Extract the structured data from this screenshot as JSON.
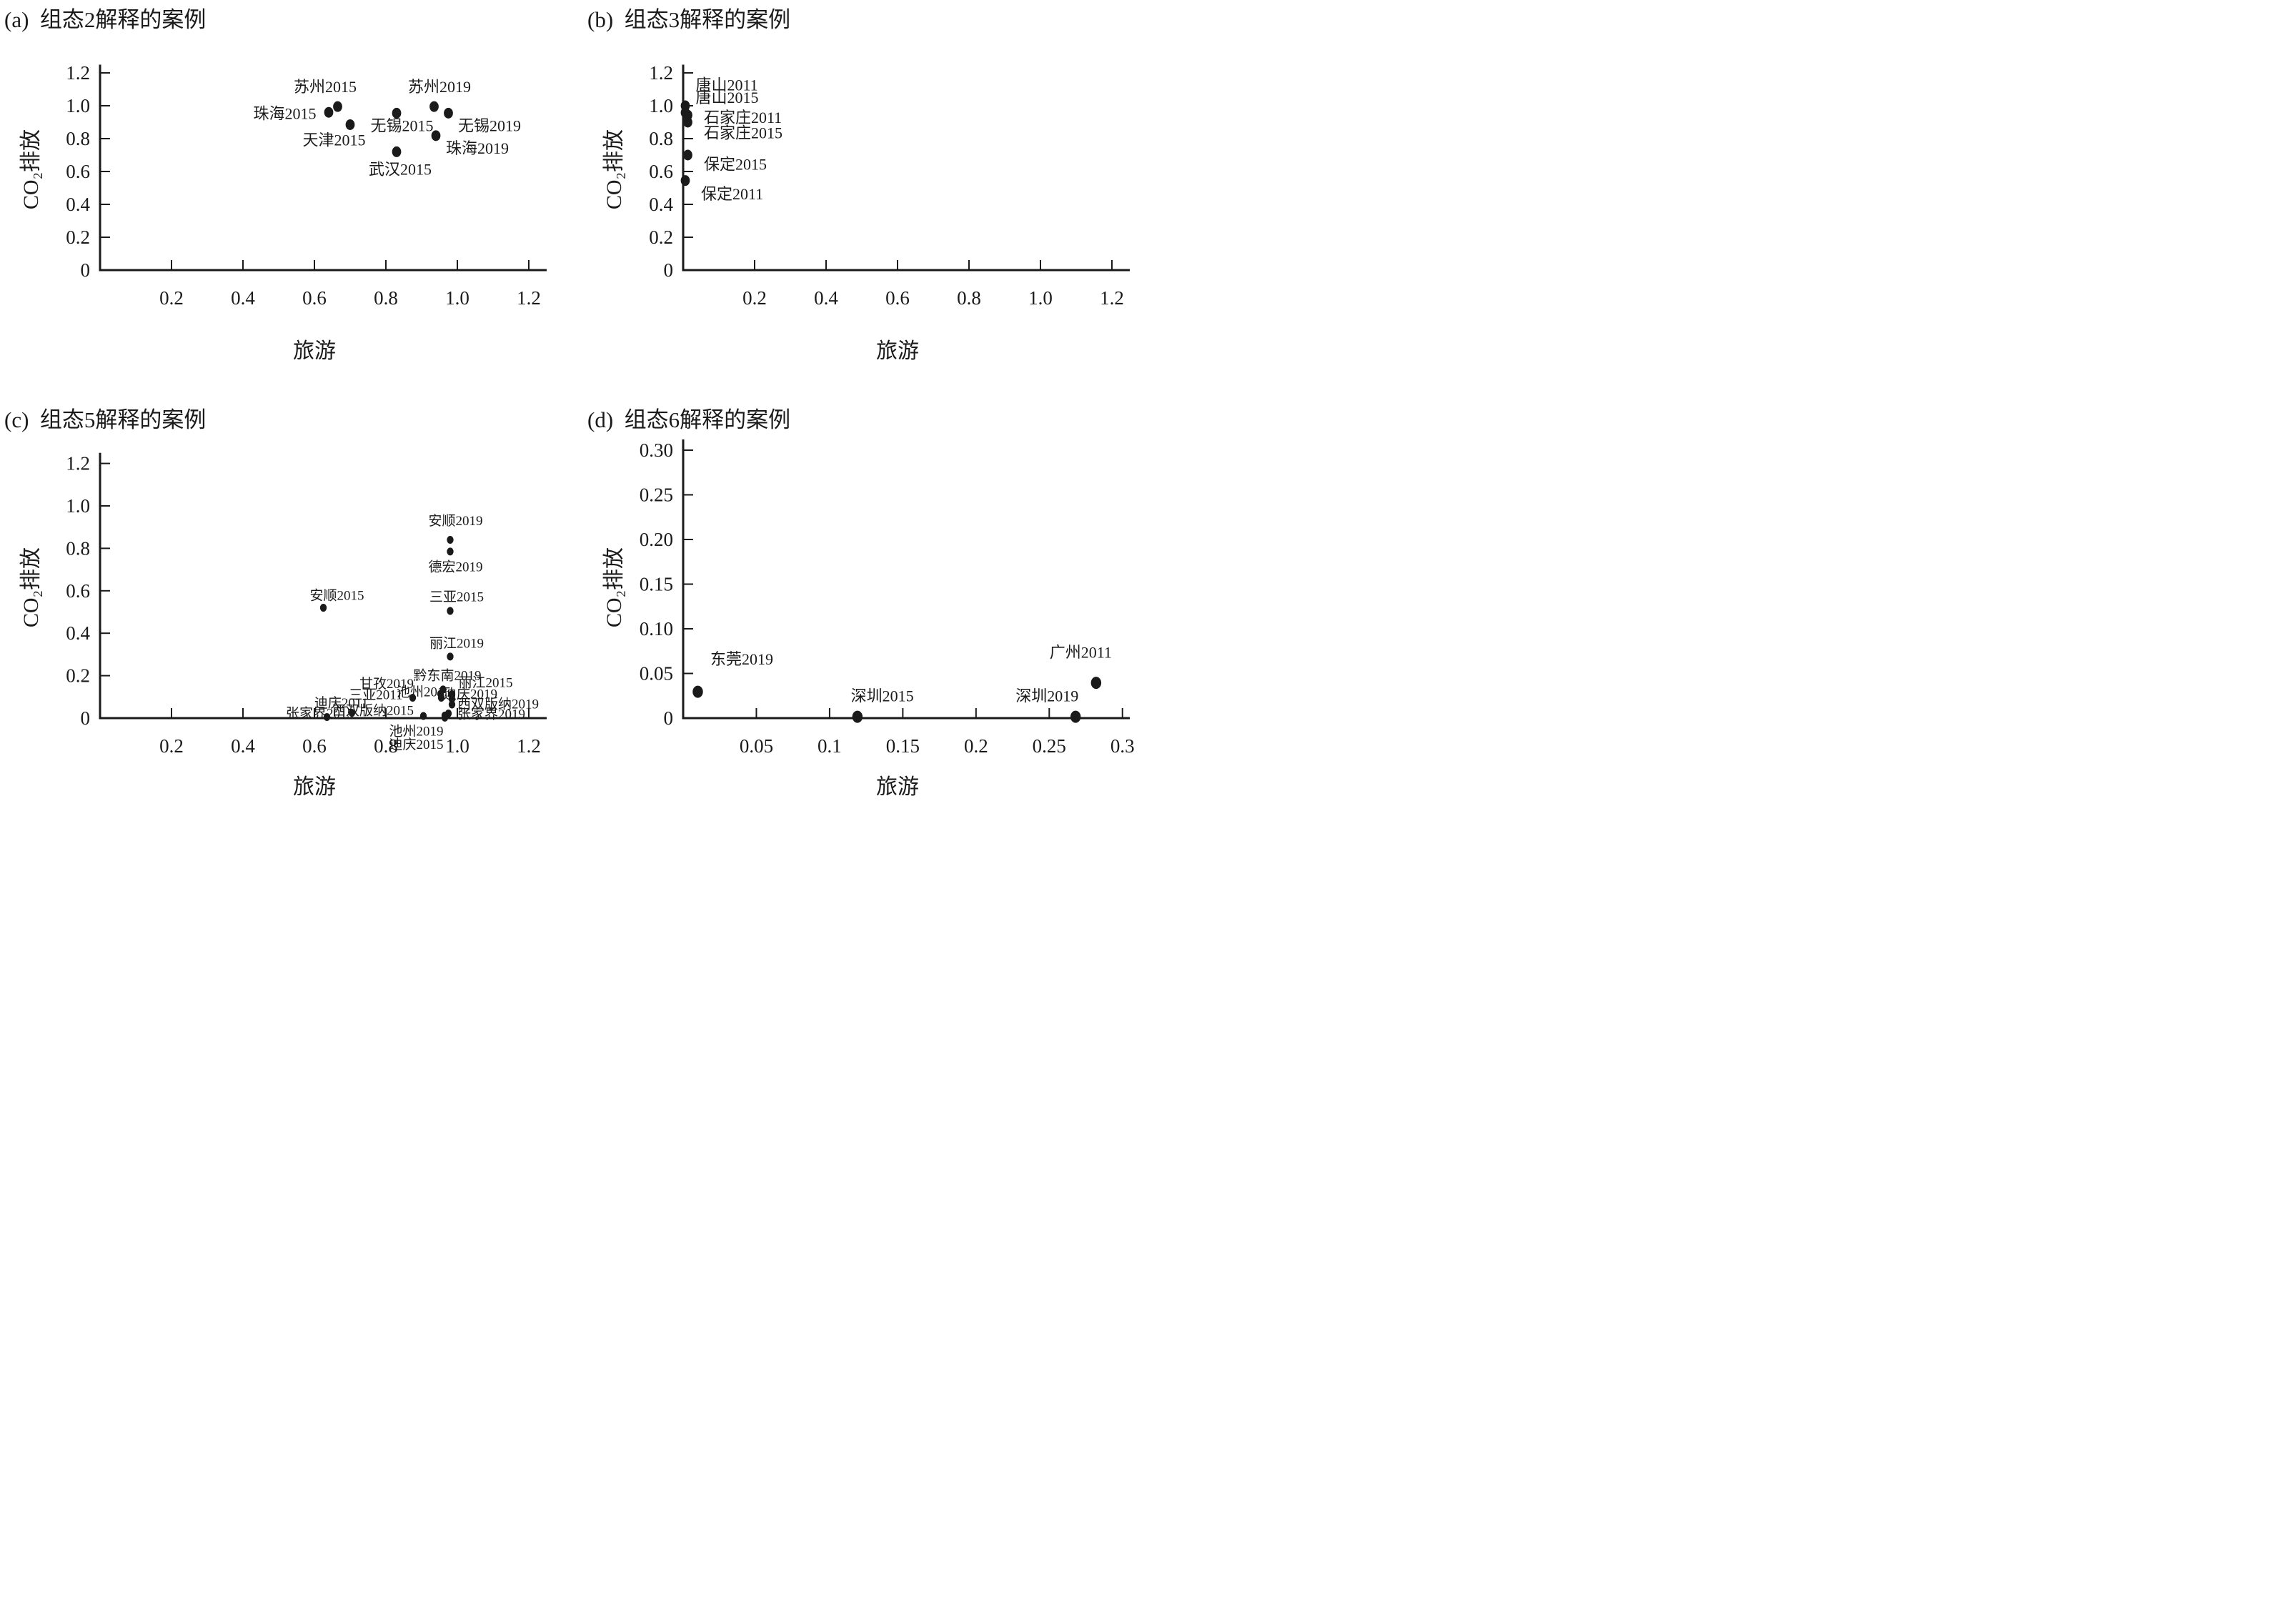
{
  "colors": {
    "ink": "#1a1a1a",
    "background": "#ffffff"
  },
  "chart_data": [
    {
      "type": "scatter",
      "id": "a",
      "title": "(a) 组态2解释的案例",
      "xlabel": "旅游",
      "ylabel": "CO₂排放",
      "xlim": [
        0,
        1.25
      ],
      "ylim": [
        0,
        1.25
      ],
      "xticks": [
        {
          "v": 0.2,
          "label": "0.2"
        },
        {
          "v": 0.4,
          "label": "0.4"
        },
        {
          "v": 0.6,
          "label": "0.6"
        },
        {
          "v": 0.8,
          "label": "0.8"
        },
        {
          "v": 1.0,
          "label": "1.0"
        },
        {
          "v": 1.2,
          "label": "1.2"
        }
      ],
      "yticks": [
        {
          "v": 0,
          "label": "0"
        },
        {
          "v": 0.2,
          "label": "0.2"
        },
        {
          "v": 0.4,
          "label": "0.4"
        },
        {
          "v": 0.6,
          "label": "0.6"
        },
        {
          "v": 0.8,
          "label": "0.8"
        },
        {
          "v": 1.0,
          "label": "1.0"
        },
        {
          "v": 1.2,
          "label": "1.2"
        }
      ],
      "points": [
        {
          "name": "珠海2015",
          "x": 0.64,
          "y": 0.96,
          "lx": 0.605,
          "ly": 0.952,
          "anchor": "end"
        },
        {
          "name": "苏州2015",
          "x": 0.665,
          "y": 0.995,
          "lx": 0.63,
          "ly": 1.115,
          "anchor": "middle"
        },
        {
          "name": "天津2015",
          "x": 0.7,
          "y": 0.885,
          "lx": 0.655,
          "ly": 0.79,
          "anchor": "middle"
        },
        {
          "name": "无锡2015",
          "x": 0.83,
          "y": 0.955,
          "lx": 0.845,
          "ly": 0.878,
          "anchor": "middle"
        },
        {
          "name": "苏州2019",
          "x": 0.935,
          "y": 0.995,
          "lx": 0.95,
          "ly": 1.115,
          "anchor": "middle"
        },
        {
          "name": "无锡2019",
          "x": 0.975,
          "y": 0.955,
          "lx": 1.09,
          "ly": 0.878,
          "anchor": "middle"
        },
        {
          "name": "珠海2019",
          "x": 0.94,
          "y": 0.818,
          "lx": 0.968,
          "ly": 0.74,
          "anchor": "start"
        },
        {
          "name": "武汉2015",
          "x": 0.83,
          "y": 0.72,
          "lx": 0.84,
          "ly": 0.612,
          "anchor": "middle"
        }
      ]
    },
    {
      "type": "scatter",
      "id": "b",
      "title": "(b) 组态3解释的案例",
      "xlabel": "旅游",
      "ylabel": "CO₂排放",
      "xlim": [
        0,
        1.25
      ],
      "ylim": [
        0,
        1.25
      ],
      "xticks": [
        {
          "v": 0.2,
          "label": "0.2"
        },
        {
          "v": 0.4,
          "label": "0.4"
        },
        {
          "v": 0.6,
          "label": "0.6"
        },
        {
          "v": 0.8,
          "label": "0.8"
        },
        {
          "v": 1.0,
          "label": "1.0"
        },
        {
          "v": 1.2,
          "label": "1.2"
        }
      ],
      "yticks": [
        {
          "v": 0,
          "label": "0"
        },
        {
          "v": 0.2,
          "label": "0.2"
        },
        {
          "v": 0.4,
          "label": "0.4"
        },
        {
          "v": 0.6,
          "label": "0.6"
        },
        {
          "v": 0.8,
          "label": "0.8"
        },
        {
          "v": 1.0,
          "label": "1.0"
        },
        {
          "v": 1.2,
          "label": "1.2"
        }
      ],
      "points": [
        {
          "name": "唐山2011",
          "x": 0.006,
          "y": 1.0,
          "lx": 0.035,
          "ly": 1.125,
          "anchor": "start"
        },
        {
          "name": "唐山2015",
          "x": 0.006,
          "y": 0.958,
          "lx": 0.035,
          "ly": 1.048,
          "anchor": "start"
        },
        {
          "name": "石家庄2011",
          "x": 0.013,
          "y": 0.943,
          "lx": 0.058,
          "ly": 0.928,
          "anchor": "start"
        },
        {
          "name": "石家庄2015",
          "x": 0.013,
          "y": 0.9,
          "lx": 0.058,
          "ly": 0.833,
          "anchor": "start"
        },
        {
          "name": "保定2015",
          "x": 0.013,
          "y": 0.7,
          "lx": 0.058,
          "ly": 0.643,
          "anchor": "start"
        },
        {
          "name": "保定2011",
          "x": 0.006,
          "y": 0.545,
          "lx": 0.05,
          "ly": 0.462,
          "anchor": "start"
        }
      ]
    },
    {
      "type": "scatter",
      "id": "c",
      "title": "(c) 组态5解释的案例",
      "xlabel": "旅游",
      "ylabel": "CO₂排放",
      "xlim": [
        0,
        1.25
      ],
      "ylim": [
        0,
        1.25
      ],
      "xticks": [
        {
          "v": 0.2,
          "label": "0.2"
        },
        {
          "v": 0.4,
          "label": "0.4"
        },
        {
          "v": 0.6,
          "label": "0.6"
        },
        {
          "v": 0.8,
          "label": "0.8"
        },
        {
          "v": 1.0,
          "label": "1.0"
        },
        {
          "v": 1.2,
          "label": "1.2"
        }
      ],
      "yticks": [
        {
          "v": 0,
          "label": "0"
        },
        {
          "v": 0.2,
          "label": "0.2"
        },
        {
          "v": 0.4,
          "label": "0.4"
        },
        {
          "v": 0.6,
          "label": "0.6"
        },
        {
          "v": 0.8,
          "label": "0.8"
        },
        {
          "v": 1.0,
          "label": "1.0"
        },
        {
          "v": 1.2,
          "label": "1.2"
        }
      ],
      "points": [
        {
          "name": "安顺2019",
          "x": 0.98,
          "y": 0.84,
          "lx": 0.995,
          "ly": 0.93,
          "anchor": "middle"
        },
        {
          "name": "德宏2019",
          "x": 0.98,
          "y": 0.785,
          "lx": 0.995,
          "ly": 0.713,
          "anchor": "middle"
        },
        {
          "name": "安顺2015",
          "x": 0.625,
          "y": 0.52,
          "lx": 0.663,
          "ly": 0.578,
          "anchor": "middle"
        },
        {
          "name": "三亚2015",
          "x": 0.98,
          "y": 0.505,
          "lx": 0.998,
          "ly": 0.572,
          "anchor": "middle"
        },
        {
          "name": "丽江2019",
          "x": 0.98,
          "y": 0.29,
          "lx": 0.998,
          "ly": 0.352,
          "anchor": "middle"
        },
        {
          "name": "黔东南2019",
          "x": 0.96,
          "y": 0.135,
          "lx": 0.972,
          "ly": 0.201,
          "anchor": "middle"
        },
        {
          "name": "甘孜2019",
          "x": 0.953,
          "y": 0.114,
          "lx": 0.878,
          "ly": 0.162,
          "anchor": "end"
        },
        {
          "name": "丽江2015",
          "x": 0.985,
          "y": 0.112,
          "lx": 1.003,
          "ly": 0.168,
          "anchor": "start"
        },
        {
          "name": "池州2015",
          "x": 0.955,
          "y": 0.096,
          "lx": 0.982,
          "ly": 0.124,
          "anchor": "end"
        },
        {
          "name": "迪庆2019",
          "x": 0.985,
          "y": 0.09,
          "lx": 0.96,
          "ly": 0.114,
          "anchor": "start"
        },
        {
          "name": "三亚2011",
          "x": 0.875,
          "y": 0.096,
          "lx": 0.847,
          "ly": 0.11,
          "anchor": "end"
        },
        {
          "name": "西双版纳2019",
          "x": 0.985,
          "y": 0.064,
          "lx": 1.0,
          "ly": 0.066,
          "anchor": "start"
        },
        {
          "name": "迪庆2011",
          "x": 0.705,
          "y": 0.025,
          "lx": 0.675,
          "ly": 0.072,
          "anchor": "middle"
        },
        {
          "name": "西双版纳2015",
          "x": 0.905,
          "y": 0.01,
          "lx": 0.878,
          "ly": 0.036,
          "anchor": "end"
        },
        {
          "name": "张家界2015",
          "x": 0.635,
          "y": 0.005,
          "lx": 0.71,
          "ly": 0.022,
          "anchor": "end"
        },
        {
          "name": "张家界2019",
          "x": 0.975,
          "y": 0.022,
          "lx": 1.0,
          "ly": 0.02,
          "anchor": "start"
        },
        {
          "name": "池州2019",
          "x": 0.965,
          "y": 0.012,
          "lx": 0.885,
          "ly": -0.062,
          "anchor": "middle"
        },
        {
          "name": "迪庆2015",
          "x": 0.965,
          "y": 0.002,
          "lx": 0.885,
          "ly": -0.124,
          "anchor": "middle"
        }
      ]
    },
    {
      "type": "scatter",
      "id": "d",
      "title": "(d) 组态6解释的案例",
      "xlabel": "旅游",
      "ylabel": "CO₂排放",
      "xlim": [
        0,
        0.305
      ],
      "ylim": [
        0,
        0.312
      ],
      "xticks": [
        {
          "v": 0.05,
          "label": "0.05"
        },
        {
          "v": 0.1,
          "label": "0.1"
        },
        {
          "v": 0.15,
          "label": "0.15"
        },
        {
          "v": 0.2,
          "label": "0.2"
        },
        {
          "v": 0.25,
          "label": "0.25"
        },
        {
          "v": 0.3,
          "label": "0.3"
        }
      ],
      "yticks": [
        {
          "v": 0,
          "label": "0"
        },
        {
          "v": 0.05,
          "label": "0.05"
        },
        {
          "v": 0.1,
          "label": "0.10"
        },
        {
          "v": 0.15,
          "label": "0.15"
        },
        {
          "v": 0.2,
          "label": "0.20"
        },
        {
          "v": 0.25,
          "label": "0.25"
        },
        {
          "v": 0.3,
          "label": "0.30"
        }
      ],
      "points": [
        {
          "name": "东莞2019",
          "x": 0.01,
          "y": 0.0295,
          "lx": 0.04,
          "ly": 0.066,
          "anchor": "middle"
        },
        {
          "name": "深圳2015",
          "x": 0.119,
          "y": 0.0015,
          "lx": 0.136,
          "ly": 0.0245,
          "anchor": "middle"
        },
        {
          "name": "深圳2019",
          "x": 0.268,
          "y": 0.0015,
          "lx": 0.2485,
          "ly": 0.0245,
          "anchor": "middle"
        },
        {
          "name": "广州2011",
          "x": 0.282,
          "y": 0.0395,
          "lx": 0.2715,
          "ly": 0.0735,
          "anchor": "middle"
        }
      ]
    }
  ]
}
